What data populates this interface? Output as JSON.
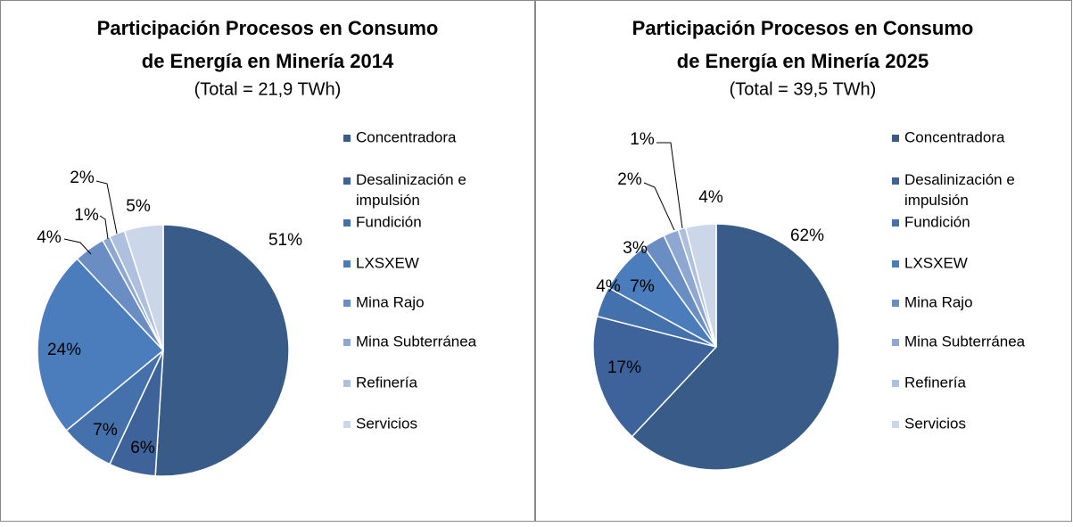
{
  "chart_data": [
    {
      "type": "pie",
      "title": [
        "Participación Procesos en Consumo",
        "de Energía en Minería  2014"
      ],
      "subtitle": "(Total = 21,9 TWh)",
      "categories": [
        "Concentradora",
        "Desalinización e impulsión",
        "Fundición",
        "LXSXEW",
        "Mina Rajo",
        "Mina Subterránea",
        "Refinería",
        "Servicios"
      ],
      "values": [
        51,
        6,
        7,
        24,
        4,
        1,
        2,
        5
      ],
      "value_labels": [
        "51%",
        "6%",
        "7%",
        "24%",
        "4%",
        "1%",
        "2%",
        "5%"
      ],
      "colors": [
        "#385b88",
        "#3d639a",
        "#4470ab",
        "#4b7cbc",
        "#6a8ec4",
        "#8ea8d1",
        "#afc0de",
        "#ccd6e9"
      ]
    },
    {
      "type": "pie",
      "title": [
        "Participación Procesos en Consumo",
        "de Energía en Minería 2025"
      ],
      "subtitle": "(Total = 39,5 TWh)",
      "categories": [
        "Concentradora",
        "Desalinización e impulsión",
        "Fundición",
        "LXSXEW",
        "Mina Rajo",
        "Mina Subterránea",
        "Refinería",
        "Servicios"
      ],
      "values": [
        62,
        17,
        4,
        7,
        3,
        2,
        1,
        4
      ],
      "value_labels": [
        "62%",
        "17%",
        "4%",
        "7%",
        "3%",
        "2%",
        "1%",
        "4%"
      ],
      "colors": [
        "#385b88",
        "#3d639a",
        "#4470ab",
        "#4b7cbc",
        "#6a8ec4",
        "#8ea8d1",
        "#afc0de",
        "#ccd6e9"
      ]
    }
  ]
}
